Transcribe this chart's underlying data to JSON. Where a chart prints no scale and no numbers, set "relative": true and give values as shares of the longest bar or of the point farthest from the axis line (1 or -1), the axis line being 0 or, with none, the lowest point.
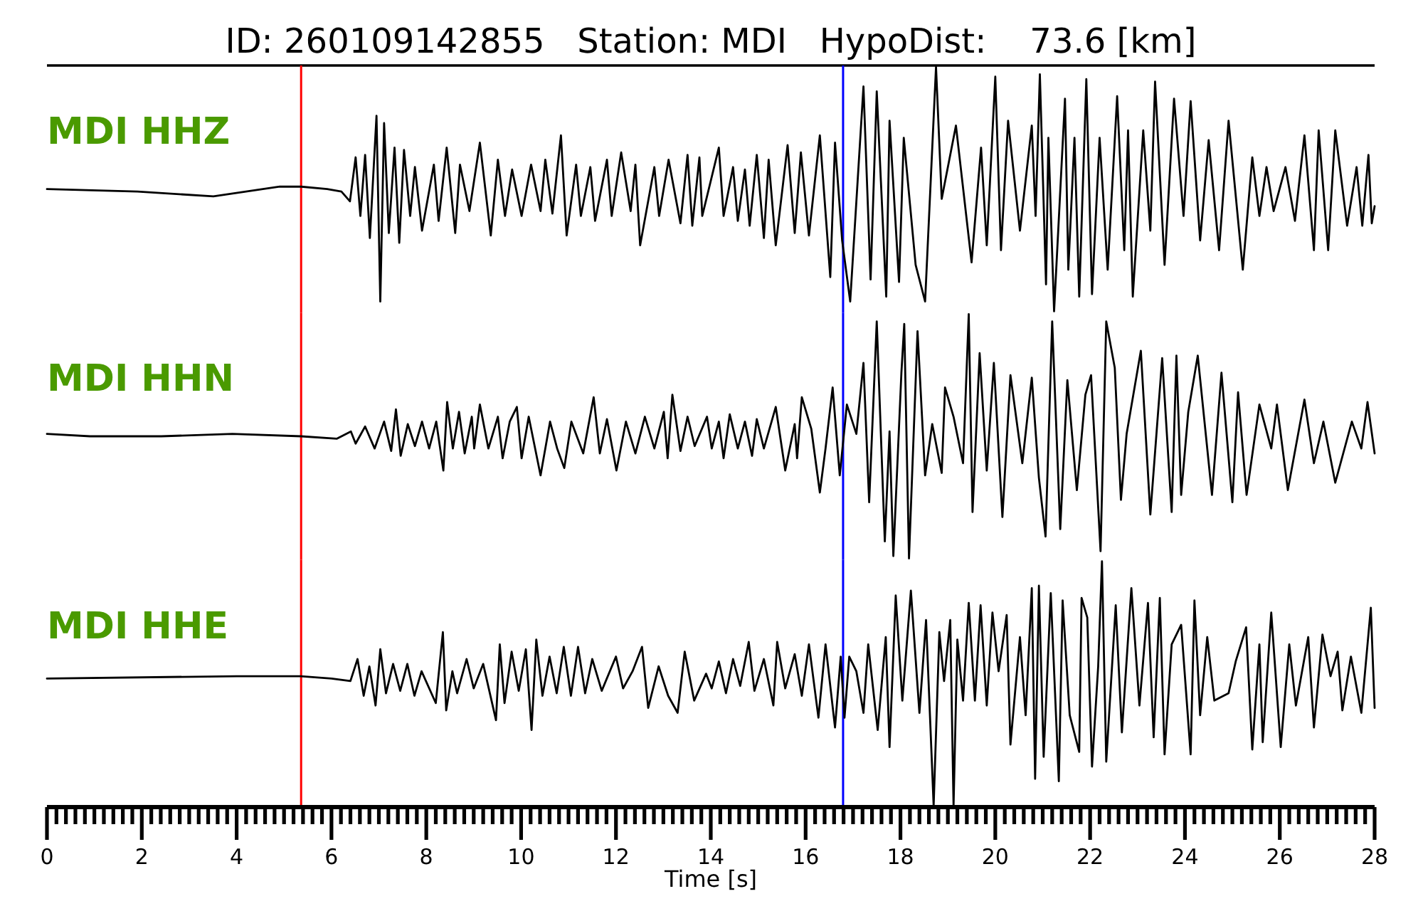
{
  "chart_data": [
    {
      "type": "line",
      "title": "ID: 260109142855   Station: MDI   HypoDist:    73.6 [km]",
      "relative": true,
      "xlim": [
        0,
        28
      ],
      "tick_labels": false,
      "ref_lines": [
        {
          "axis": "x",
          "value": 5.36,
          "color": "#ff0000"
        },
        {
          "axis": "x",
          "value": 16.79,
          "color": "#0000ff"
        }
      ],
      "series": [
        {
          "name": "MDI HHZ",
          "color": "#000000",
          "x": [
            0,
            1.91,
            3.51,
            4.91,
            5.36,
            5.91,
            6.21,
            6.39,
            6.51,
            6.61,
            6.71,
            6.81,
            6.95,
            7.03,
            7.11,
            7.21,
            7.33,
            7.43,
            7.53,
            7.66,
            7.76,
            7.91,
            8.16,
            8.26,
            8.43,
            8.61,
            8.71,
            8.91,
            9.13,
            9.36,
            9.51,
            9.66,
            9.81,
            10.01,
            10.21,
            10.41,
            10.51,
            10.66,
            10.84,
            10.96,
            11.16,
            11.26,
            11.46,
            11.56,
            11.81,
            11.91,
            12.11,
            12.31,
            12.41,
            12.51,
            12.81,
            12.91,
            13.11,
            13.36,
            13.51,
            13.61,
            13.76,
            13.82,
            14.17,
            14.27,
            14.47,
            14.57,
            14.72,
            14.82,
            14.97,
            15.12,
            15.22,
            15.37,
            15.62,
            15.77,
            15.9,
            16.07,
            16.3,
            16.52,
            16.62,
            16.77,
            16.94,
            17.22,
            17.37,
            17.5,
            17.7,
            17.77,
            17.97,
            18.07,
            18.32,
            18.52,
            18.75,
            18.87,
            19.17,
            19.5,
            19.7,
            19.82,
            20,
            20.12,
            20.27,
            20.52,
            20.77,
            20.85,
            20.94,
            21.07,
            21.12,
            21.24,
            21.47,
            21.54,
            21.67,
            21.77,
            21.92,
            22.04,
            22.2,
            22.37,
            22.57,
            22.72,
            22.8,
            22.9,
            23.12,
            23.27,
            23.37,
            23.57,
            23.77,
            23.97,
            24.12,
            24.32,
            24.5,
            24.72,
            24.92,
            25.22,
            25.42,
            25.57,
            25.72,
            25.87,
            26.12,
            26.32,
            26.52,
            26.72,
            26.82,
            27.02,
            27.17,
            27.42,
            27.62,
            27.74,
            27.87,
            27.94,
            28
          ],
          "values": [
            0.5,
            0.49,
            0.47,
            0.51,
            0.51,
            0.5,
            0.49,
            0.45,
            0.63,
            0.39,
            0.64,
            0.3,
            0.8,
            0.04,
            0.77,
            0.32,
            0.67,
            0.28,
            0.66,
            0.39,
            0.59,
            0.33,
            0.6,
            0.37,
            0.67,
            0.32,
            0.6,
            0.41,
            0.69,
            0.31,
            0.62,
            0.39,
            0.58,
            0.39,
            0.6,
            0.41,
            0.62,
            0.4,
            0.72,
            0.31,
            0.6,
            0.39,
            0.59,
            0.37,
            0.62,
            0.39,
            0.65,
            0.41,
            0.6,
            0.27,
            0.59,
            0.39,
            0.62,
            0.36,
            0.64,
            0.35,
            0.63,
            0.39,
            0.67,
            0.39,
            0.59,
            0.37,
            0.58,
            0.35,
            0.64,
            0.3,
            0.62,
            0.27,
            0.68,
            0.32,
            0.65,
            0.31,
            0.72,
            0.14,
            0.69,
            0.29,
            0.04,
            0.92,
            0.13,
            0.9,
            0.06,
            0.78,
            0.12,
            0.71,
            0.19,
            0.04,
            1,
            0.46,
            0.76,
            0.2,
            0.67,
            0.27,
            0.96,
            0.25,
            0.78,
            0.33,
            0.76,
            0.39,
            0.97,
            0.11,
            0.71,
            0,
            0.87,
            0.17,
            0.71,
            0.06,
            0.95,
            0.07,
            0.71,
            0.17,
            0.88,
            0.25,
            0.74,
            0.06,
            0.74,
            0.33,
            0.94,
            0.19,
            0.87,
            0.39,
            0.86,
            0.29,
            0.7,
            0.25,
            0.78,
            0.17,
            0.63,
            0.39,
            0.59,
            0.41,
            0.59,
            0.37,
            0.72,
            0.25,
            0.74,
            0.25,
            0.74,
            0.35,
            0.59,
            0.35,
            0.64,
            0.36,
            0.43
          ]
        }
      ]
    },
    {
      "type": "line",
      "relative": true,
      "xlim": [
        0,
        28
      ],
      "tick_labels": false,
      "ref_lines": [
        {
          "axis": "x",
          "value": 5.36,
          "color": "#ff0000"
        },
        {
          "axis": "x",
          "value": 16.79,
          "color": "#0000ff"
        }
      ],
      "series": [
        {
          "name": "MDI HHN",
          "color": "#000000",
          "x": [
            0,
            0.91,
            2.41,
            3.91,
            5.36,
            6.11,
            6.41,
            6.51,
            6.71,
            6.91,
            7.11,
            7.26,
            7.36,
            7.46,
            7.61,
            7.76,
            7.91,
            8.06,
            8.21,
            8.36,
            8.44,
            8.56,
            8.69,
            8.81,
            8.96,
            9.01,
            9.13,
            9.31,
            9.51,
            9.61,
            9.76,
            9.91,
            10.01,
            10.16,
            10.41,
            10.61,
            10.76,
            10.91,
            11.06,
            11.31,
            11.53,
            11.66,
            11.81,
            12.01,
            12.21,
            12.41,
            12.61,
            12.81,
            13.01,
            13.09,
            13.19,
            13.36,
            13.51,
            13.66,
            13.92,
            14.02,
            14.17,
            14.27,
            14.4,
            14.57,
            14.72,
            14.87,
            14.97,
            15.12,
            15.37,
            15.57,
            15.77,
            15.82,
            15.92,
            16.12,
            16.3,
            16.42,
            16.57,
            16.72,
            16.87,
            17.07,
            17.22,
            17.34,
            17.5,
            17.67,
            17.77,
            17.85,
            18.02,
            18.08,
            18.18,
            18.36,
            18.52,
            18.67,
            18.87,
            18.94,
            19.12,
            19.32,
            19.44,
            19.52,
            19.67,
            19.82,
            19.97,
            20.15,
            20.32,
            20.57,
            20.77,
            20.92,
            21.06,
            21.2,
            21.37,
            21.52,
            21.72,
            21.9,
            22.02,
            22.22,
            22.34,
            22.52,
            22.65,
            22.77,
            23.07,
            23.27,
            23.52,
            23.72,
            23.82,
            23.92,
            24.07,
            24.27,
            24.57,
            24.77,
            25,
            25.12,
            25.3,
            25.57,
            25.82,
            25.94,
            26.17,
            26.52,
            26.72,
            26.92,
            27.17,
            27.52,
            27.72,
            27.85,
            28
          ],
          "values": [
            0.51,
            0.5,
            0.5,
            0.51,
            0.5,
            0.49,
            0.52,
            0.47,
            0.54,
            0.45,
            0.56,
            0.44,
            0.61,
            0.42,
            0.55,
            0.46,
            0.56,
            0.45,
            0.56,
            0.36,
            0.64,
            0.45,
            0.6,
            0.43,
            0.58,
            0.45,
            0.63,
            0.45,
            0.58,
            0.41,
            0.56,
            0.62,
            0.41,
            0.58,
            0.34,
            0.56,
            0.45,
            0.37,
            0.56,
            0.43,
            0.66,
            0.43,
            0.57,
            0.36,
            0.56,
            0.43,
            0.58,
            0.45,
            0.6,
            0.41,
            0.67,
            0.44,
            0.58,
            0.46,
            0.58,
            0.45,
            0.56,
            0.41,
            0.59,
            0.45,
            0.56,
            0.42,
            0.57,
            0.45,
            0.62,
            0.36,
            0.55,
            0.41,
            0.66,
            0.53,
            0.27,
            0.45,
            0.7,
            0.34,
            0.63,
            0.51,
            0.8,
            0.23,
            0.97,
            0.07,
            0.52,
            0.01,
            0.76,
            0.96,
            0,
            0.93,
            0.34,
            0.55,
            0.35,
            0.7,
            0.58,
            0.39,
            1,
            0.19,
            0.84,
            0.36,
            0.8,
            0.17,
            0.75,
            0.39,
            0.74,
            0.33,
            0.09,
            0.97,
            0.12,
            0.73,
            0.28,
            0.67,
            0.75,
            0.03,
            0.97,
            0.78,
            0.24,
            0.51,
            0.85,
            0.18,
            0.82,
            0.19,
            0.83,
            0.26,
            0.6,
            0.83,
            0.26,
            0.76,
            0.23,
            0.68,
            0.26,
            0.63,
            0.45,
            0.63,
            0.28,
            0.65,
            0.39,
            0.56,
            0.31,
            0.56,
            0.45,
            0.64,
            0.43
          ]
        }
      ]
    },
    {
      "type": "line",
      "relative": true,
      "xlim": [
        0,
        28
      ],
      "xlabel": "Time [s]",
      "xticks": [
        0,
        {
          "value": 0.2,
          "label": null
        },
        {
          "value": 0.4,
          "label": null
        },
        {
          "value": 0.6,
          "label": null
        },
        {
          "value": 0.8,
          "label": null
        },
        {
          "value": 1,
          "label": null
        },
        {
          "value": 1.2,
          "label": null
        },
        {
          "value": 1.4,
          "label": null
        },
        {
          "value": 1.6,
          "label": null
        },
        {
          "value": 1.8,
          "label": null
        },
        2,
        {
          "value": 2.2,
          "label": null
        },
        {
          "value": 2.4,
          "label": null
        },
        {
          "value": 2.6,
          "label": null
        },
        {
          "value": 2.8,
          "label": null
        },
        {
          "value": 3,
          "label": null
        },
        {
          "value": 3.2,
          "label": null
        },
        {
          "value": 3.4,
          "label": null
        },
        {
          "value": 3.6,
          "label": null
        },
        {
          "value": 3.8,
          "label": null
        },
        4,
        {
          "value": 4.2,
          "label": null
        },
        {
          "value": 4.4,
          "label": null
        },
        {
          "value": 4.6,
          "label": null
        },
        {
          "value": 4.8,
          "label": null
        },
        {
          "value": 5,
          "label": null
        },
        {
          "value": 5.2,
          "label": null
        },
        {
          "value": 5.4,
          "label": null
        },
        {
          "value": 5.6,
          "label": null
        },
        {
          "value": 5.8,
          "label": null
        },
        6,
        {
          "value": 6.2,
          "label": null
        },
        {
          "value": 6.4,
          "label": null
        },
        {
          "value": 6.6,
          "label": null
        },
        {
          "value": 6.8,
          "label": null
        },
        {
          "value": 7,
          "label": null
        },
        {
          "value": 7.2,
          "label": null
        },
        {
          "value": 7.4,
          "label": null
        },
        {
          "value": 7.6,
          "label": null
        },
        {
          "value": 7.8,
          "label": null
        },
        8,
        {
          "value": 8.2,
          "label": null
        },
        {
          "value": 8.4,
          "label": null
        },
        {
          "value": 8.6,
          "label": null
        },
        {
          "value": 8.8,
          "label": null
        },
        {
          "value": 9,
          "label": null
        },
        {
          "value": 9.2,
          "label": null
        },
        {
          "value": 9.4,
          "label": null
        },
        {
          "value": 9.6,
          "label": null
        },
        {
          "value": 9.8,
          "label": null
        },
        10,
        {
          "value": 10.2,
          "label": null
        },
        {
          "value": 10.4,
          "label": null
        },
        {
          "value": 10.6,
          "label": null
        },
        {
          "value": 10.8,
          "label": null
        },
        {
          "value": 11,
          "label": null
        },
        {
          "value": 11.2,
          "label": null
        },
        {
          "value": 11.4,
          "label": null
        },
        {
          "value": 11.6,
          "label": null
        },
        {
          "value": 11.8,
          "label": null
        },
        12,
        {
          "value": 12.2,
          "label": null
        },
        {
          "value": 12.4,
          "label": null
        },
        {
          "value": 12.6,
          "label": null
        },
        {
          "value": 12.8,
          "label": null
        },
        {
          "value": 13,
          "label": null
        },
        {
          "value": 13.2,
          "label": null
        },
        {
          "value": 13.4,
          "label": null
        },
        {
          "value": 13.6,
          "label": null
        },
        {
          "value": 13.8,
          "label": null
        },
        14,
        {
          "value": 14.2,
          "label": null
        },
        {
          "value": 14.4,
          "label": null
        },
        {
          "value": 14.6,
          "label": null
        },
        {
          "value": 14.8,
          "label": null
        },
        {
          "value": 15,
          "label": null
        },
        {
          "value": 15.2,
          "label": null
        },
        {
          "value": 15.4,
          "label": null
        },
        {
          "value": 15.6,
          "label": null
        },
        {
          "value": 15.8,
          "label": null
        },
        16,
        {
          "value": 16.2,
          "label": null
        },
        {
          "value": 16.4,
          "label": null
        },
        {
          "value": 16.6,
          "label": null
        },
        {
          "value": 16.8,
          "label": null
        },
        {
          "value": 17,
          "label": null
        },
        {
          "value": 17.2,
          "label": null
        },
        {
          "value": 17.4,
          "label": null
        },
        {
          "value": 17.6,
          "label": null
        },
        {
          "value": 17.8,
          "label": null
        },
        18,
        {
          "value": 18.2,
          "label": null
        },
        {
          "value": 18.4,
          "label": null
        },
        {
          "value": 18.6,
          "label": null
        },
        {
          "value": 18.8,
          "label": null
        },
        {
          "value": 19,
          "label": null
        },
        {
          "value": 19.2,
          "label": null
        },
        {
          "value": 19.4,
          "label": null
        },
        {
          "value": 19.6,
          "label": null
        },
        {
          "value": 19.8,
          "label": null
        },
        20,
        {
          "value": 20.2,
          "label": null
        },
        {
          "value": 20.4,
          "label": null
        },
        {
          "value": 20.6,
          "label": null
        },
        {
          "value": 20.8,
          "label": null
        },
        {
          "value": 21,
          "label": null
        },
        {
          "value": 21.2,
          "label": null
        },
        {
          "value": 21.4,
          "label": null
        },
        {
          "value": 21.6,
          "label": null
        },
        {
          "value": 21.8,
          "label": null
        },
        22,
        {
          "value": 22.2,
          "label": null
        },
        {
          "value": 22.4,
          "label": null
        },
        {
          "value": 22.6,
          "label": null
        },
        {
          "value": 22.8,
          "label": null
        },
        {
          "value": 23,
          "label": null
        },
        {
          "value": 23.2,
          "label": null
        },
        {
          "value": 23.4,
          "label": null
        },
        {
          "value": 23.6,
          "label": null
        },
        {
          "value": 23.8,
          "label": null
        },
        24,
        {
          "value": 24.2,
          "label": null
        },
        {
          "value": 24.4,
          "label": null
        },
        {
          "value": 24.6,
          "label": null
        },
        {
          "value": 24.8,
          "label": null
        },
        {
          "value": 25,
          "label": null
        },
        {
          "value": 25.2,
          "label": null
        },
        {
          "value": 25.4,
          "label": null
        },
        {
          "value": 25.6,
          "label": null
        },
        {
          "value": 25.8,
          "label": null
        },
        26,
        {
          "value": 26.2,
          "label": null
        },
        {
          "value": 26.4,
          "label": null
        },
        {
          "value": 26.6,
          "label": null
        },
        {
          "value": 26.8,
          "label": null
        },
        {
          "value": 27,
          "label": null
        },
        {
          "value": 27.2,
          "label": null
        },
        {
          "value": 27.4,
          "label": null
        },
        {
          "value": 27.6,
          "label": null
        },
        {
          "value": 27.8,
          "label": null
        },
        28
      ],
      "ref_lines": [
        {
          "axis": "x",
          "value": 5.36,
          "color": "#ff0000"
        },
        {
          "axis": "x",
          "value": 16.79,
          "color": "#0000ff"
        }
      ],
      "series": [
        {
          "name": "MDI HHE",
          "color": "#000000",
          "x": [
            0,
            4,
            5.35,
            6,
            6.4,
            6.55,
            6.68,
            6.8,
            6.93,
            7.03,
            7.15,
            7.3,
            7.45,
            7.6,
            7.75,
            7.9,
            8.2,
            8.35,
            8.42,
            8.55,
            8.65,
            8.85,
            9,
            9.2,
            9.47,
            9.55,
            9.65,
            9.8,
            9.95,
            10.1,
            10.22,
            10.32,
            10.45,
            10.6,
            10.75,
            10.9,
            11.05,
            11.2,
            11.35,
            11.5,
            11.7,
            12,
            12.15,
            12.35,
            12.55,
            12.68,
            12.9,
            13.1,
            13.3,
            13.45,
            13.65,
            13.9,
            14.02,
            14.17,
            14.32,
            14.47,
            14.62,
            14.8,
            14.92,
            15.12,
            15.32,
            15.4,
            15.57,
            15.77,
            15.92,
            16.07,
            16.27,
            16.42,
            16.62,
            16.74,
            16.82,
            16.92,
            17.07,
            17.22,
            17.32,
            17.52,
            17.69,
            17.77,
            17.9,
            18.04,
            18.22,
            18.4,
            18.54,
            18.7,
            18.82,
            18.92,
            19.05,
            19.12,
            19.2,
            19.32,
            19.44,
            19.57,
            19.69,
            19.82,
            19.94,
            20.07,
            20.24,
            20.32,
            20.52,
            20.64,
            20.77,
            20.84,
            20.92,
            21.02,
            21.17,
            21.34,
            21.42,
            21.57,
            21.77,
            21.82,
            21.94,
            22.04,
            22.17,
            22.25,
            22.34,
            22.54,
            22.67,
            22.87,
            23.04,
            23.22,
            23.34,
            23.47,
            23.57,
            23.72,
            23.92,
            24.12,
            24.2,
            24.32,
            24.47,
            24.62,
            24.92,
            25.07,
            25.29,
            25.42,
            25.57,
            25.64,
            25.82,
            26.02,
            26.2,
            26.34,
            26.6,
            26.72,
            26.9,
            27.07,
            27.22,
            27.32,
            27.5,
            27.72,
            27.92,
            28
          ],
          "values": [
            0.52,
            0.53,
            0.53,
            0.52,
            0.51,
            0.6,
            0.45,
            0.57,
            0.41,
            0.64,
            0.46,
            0.58,
            0.47,
            0.58,
            0.45,
            0.55,
            0.42,
            0.71,
            0.39,
            0.55,
            0.46,
            0.6,
            0.48,
            0.58,
            0.35,
            0.66,
            0.42,
            0.63,
            0.47,
            0.64,
            0.31,
            0.68,
            0.45,
            0.61,
            0.46,
            0.65,
            0.45,
            0.65,
            0.46,
            0.6,
            0.47,
            0.61,
            0.48,
            0.55,
            0.65,
            0.4,
            0.57,
            0.45,
            0.38,
            0.63,
            0.43,
            0.54,
            0.48,
            0.59,
            0.46,
            0.6,
            0.49,
            0.67,
            0.47,
            0.6,
            0.41,
            0.67,
            0.48,
            0.62,
            0.45,
            0.66,
            0.36,
            0.66,
            0.32,
            0.61,
            0.36,
            0.61,
            0.55,
            0.38,
            0.66,
            0.31,
            0.69,
            0.24,
            0.86,
            0.43,
            0.88,
            0.38,
            0.76,
            0,
            0.71,
            0.51,
            0.76,
            0,
            0.68,
            0.43,
            0.83,
            0.43,
            0.82,
            0.41,
            0.79,
            0.55,
            0.78,
            0.25,
            0.69,
            0.37,
            0.89,
            0.11,
            0.9,
            0.2,
            0.87,
            0.1,
            0.84,
            0.37,
            0.22,
            0.85,
            0.77,
            0.16,
            0.57,
            1,
            0.18,
            0.82,
            0.3,
            0.89,
            0.41,
            0.83,
            0.28,
            0.85,
            0.21,
            0.66,
            0.74,
            0.21,
            0.84,
            0.37,
            0.69,
            0.43,
            0.46,
            0.59,
            0.73,
            0.23,
            0.66,
            0.26,
            0.79,
            0.24,
            0.66,
            0.41,
            0.69,
            0.32,
            0.7,
            0.53,
            0.63,
            0.39,
            0.61,
            0.38,
            0.81,
            0.4
          ]
        }
      ]
    }
  ]
}
